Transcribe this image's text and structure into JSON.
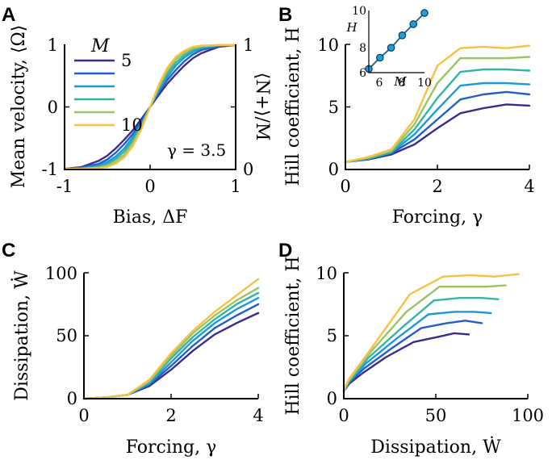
{
  "colors": [
    "#3b2d8c",
    "#2260c8",
    "#1d9ad6",
    "#33b5a4",
    "#9cc462",
    "#f9c043"
  ],
  "chart_data": [
    {
      "panel": "A",
      "type": "line",
      "xlabel": "Bias, ΔF",
      "ylabel": "Mean velocity, ⟨Ω⟩",
      "ylabel_right": "⟨N+⟩/M",
      "xlim": [
        -1,
        1
      ],
      "ylim": [
        -1,
        1
      ],
      "xticks": [
        "-1",
        "0",
        "1"
      ],
      "yticks": [
        "-1",
        "0",
        "1"
      ],
      "yticks_right": [
        "0",
        "1"
      ],
      "legend_title": "M",
      "legend_labels": [
        "5",
        "",
        "",
        "",
        "",
        "10"
      ],
      "annotation": "γ = 3.5",
      "x": [
        -1.0,
        -0.8,
        -0.6,
        -0.5,
        -0.4,
        -0.3,
        -0.2,
        -0.1,
        0.0,
        0.1,
        0.2,
        0.3,
        0.4,
        0.5,
        0.6,
        0.8,
        1.0
      ],
      "series": [
        {
          "name": "M=5",
          "values": [
            -0.99,
            -0.96,
            -0.86,
            -0.78,
            -0.66,
            -0.52,
            -0.37,
            -0.19,
            0.0,
            0.19,
            0.37,
            0.52,
            0.66,
            0.78,
            0.86,
            0.96,
            0.99
          ]
        },
        {
          "name": "M=6",
          "values": [
            -0.99,
            -0.97,
            -0.91,
            -0.84,
            -0.73,
            -0.59,
            -0.43,
            -0.23,
            0.0,
            0.23,
            0.43,
            0.59,
            0.73,
            0.84,
            0.91,
            0.97,
            0.99
          ]
        },
        {
          "name": "M=7",
          "values": [
            -0.99,
            -0.98,
            -0.94,
            -0.88,
            -0.79,
            -0.66,
            -0.48,
            -0.26,
            0.0,
            0.26,
            0.48,
            0.66,
            0.79,
            0.88,
            0.94,
            0.98,
            0.99
          ]
        },
        {
          "name": "M=8",
          "values": [
            -0.99,
            -0.99,
            -0.96,
            -0.91,
            -0.83,
            -0.71,
            -0.53,
            -0.29,
            0.0,
            0.29,
            0.53,
            0.71,
            0.83,
            0.91,
            0.96,
            0.99,
            0.99
          ]
        },
        {
          "name": "M=9",
          "values": [
            -0.99,
            -0.99,
            -0.97,
            -0.94,
            -0.87,
            -0.76,
            -0.58,
            -0.32,
            0.0,
            0.32,
            0.58,
            0.76,
            0.87,
            0.94,
            0.97,
            0.99,
            0.99
          ]
        },
        {
          "name": "M=10",
          "values": [
            -0.99,
            -0.99,
            -0.98,
            -0.96,
            -0.9,
            -0.8,
            -0.62,
            -0.35,
            0.0,
            0.35,
            0.62,
            0.8,
            0.9,
            0.96,
            0.98,
            0.99,
            0.99
          ]
        }
      ]
    },
    {
      "panel": "B",
      "type": "line",
      "xlabel": "Forcing, γ",
      "ylabel": "Hill coefficient, H",
      "xlim": [
        0,
        4
      ],
      "ylim": [
        0,
        10
      ],
      "xticks": [
        "0",
        "2",
        "4"
      ],
      "yticks": [
        "0",
        "5",
        "10"
      ],
      "x": [
        0.0,
        0.5,
        1.0,
        1.5,
        2.0,
        2.5,
        3.0,
        3.5,
        4.0
      ],
      "series": [
        {
          "name": "M=5",
          "values": [
            0.6,
            0.8,
            1.2,
            2.0,
            3.3,
            4.5,
            4.9,
            5.2,
            5.1
          ]
        },
        {
          "name": "M=6",
          "values": [
            0.6,
            0.85,
            1.3,
            2.4,
            4.0,
            5.6,
            6.0,
            6.2,
            6.0
          ]
        },
        {
          "name": "M=7",
          "values": [
            0.6,
            0.85,
            1.35,
            2.8,
            4.8,
            6.7,
            6.9,
            6.9,
            6.8
          ]
        },
        {
          "name": "M=8",
          "values": [
            0.6,
            0.9,
            1.4,
            3.2,
            5.7,
            7.8,
            8.0,
            8.0,
            7.9
          ]
        },
        {
          "name": "M=9",
          "values": [
            0.6,
            0.95,
            1.5,
            3.6,
            6.9,
            8.9,
            8.9,
            8.9,
            9.0
          ]
        },
        {
          "name": "M=10",
          "values": [
            0.6,
            1.0,
            1.6,
            4.0,
            8.3,
            9.7,
            9.8,
            9.7,
            9.9
          ]
        }
      ],
      "inset": {
        "type": "scatter",
        "xlabel": "M",
        "ylabel": "H",
        "xlim": [
          5,
          10
        ],
        "ylim": [
          5,
          10
        ],
        "xticks": [
          "6",
          "8",
          "10"
        ],
        "yticks": [
          "6",
          "8",
          "10"
        ],
        "x": [
          5,
          6,
          7,
          8,
          9,
          10
        ],
        "y": [
          5.3,
          6.2,
          7.0,
          8.0,
          8.9,
          9.8
        ]
      }
    },
    {
      "panel": "C",
      "type": "line",
      "xlabel": "Forcing, γ",
      "ylabel": "Dissipation, Ẇ",
      "xlim": [
        0,
        4
      ],
      "ylim": [
        0,
        100
      ],
      "xticks": [
        "0",
        "2",
        "4"
      ],
      "yticks": [
        "0",
        "50",
        "100"
      ],
      "x": [
        0.0,
        0.5,
        1.0,
        1.5,
        2.0,
        2.5,
        3.0,
        3.5,
        4.0
      ],
      "series": [
        {
          "name": "M=5",
          "values": [
            0,
            1,
            3,
            10,
            23,
            38,
            51,
            60,
            68
          ]
        },
        {
          "name": "M=6",
          "values": [
            0,
            1,
            3,
            11,
            26,
            42,
            56,
            66,
            75
          ]
        },
        {
          "name": "M=7",
          "values": [
            0,
            1,
            3,
            12,
            29,
            46,
            60,
            71,
            80
          ]
        },
        {
          "name": "M=8",
          "values": [
            0,
            1,
            3,
            13,
            32,
            49,
            63,
            75,
            84
          ]
        },
        {
          "name": "M=9",
          "values": [
            0,
            1,
            3,
            14,
            34,
            52,
            66,
            78,
            88
          ]
        },
        {
          "name": "M=10",
          "values": [
            0,
            1,
            3,
            15,
            36,
            54,
            69,
            82,
            95
          ]
        }
      ]
    },
    {
      "panel": "D",
      "type": "line",
      "xlabel": "Dissipation, Ẇ",
      "ylabel": "Hill coefficient, H",
      "xlim": [
        0,
        100
      ],
      "ylim": [
        0,
        10
      ],
      "xticks": [
        "0",
        "50",
        "100"
      ],
      "yticks": [
        "0",
        "5",
        "10"
      ],
      "series": [
        {
          "name": "M=5",
          "x": [
            0.0,
            1.0,
            3.0,
            10.0,
            23.0,
            38.0,
            51.0,
            60.0,
            68.0
          ],
          "values": [
            0.6,
            0.8,
            1.2,
            2.0,
            3.3,
            4.5,
            4.9,
            5.2,
            5.1
          ]
        },
        {
          "name": "M=6",
          "x": [
            0.0,
            1.0,
            3.0,
            11.0,
            26.0,
            42.0,
            56.0,
            66.0,
            75.0
          ],
          "values": [
            0.6,
            0.85,
            1.3,
            2.4,
            4.0,
            5.6,
            6.0,
            6.2,
            6.0
          ]
        },
        {
          "name": "M=7",
          "x": [
            0.0,
            1.0,
            3.0,
            12.0,
            29.0,
            46.0,
            60.0,
            71.0,
            80.0
          ],
          "values": [
            0.6,
            0.85,
            1.35,
            2.8,
            4.8,
            6.7,
            6.9,
            6.9,
            6.8
          ]
        },
        {
          "name": "M=8",
          "x": [
            0.0,
            1.0,
            3.0,
            13.0,
            32.0,
            49.0,
            63.0,
            75.0,
            84.0
          ],
          "values": [
            0.6,
            0.9,
            1.4,
            3.2,
            5.7,
            7.8,
            8.0,
            8.0,
            7.9
          ]
        },
        {
          "name": "M=9",
          "x": [
            0.0,
            1.0,
            3.0,
            14.0,
            34.0,
            52.0,
            66.0,
            78.0,
            88.0
          ],
          "values": [
            0.6,
            0.95,
            1.5,
            3.6,
            6.9,
            8.9,
            8.9,
            8.9,
            9.0
          ]
        },
        {
          "name": "M=10",
          "x": [
            0.0,
            1.0,
            3.0,
            15.0,
            36.0,
            54.0,
            69.0,
            82.0,
            95.0
          ],
          "values": [
            0.6,
            1.0,
            1.6,
            4.0,
            8.3,
            9.7,
            9.8,
            9.7,
            9.9
          ]
        }
      ]
    }
  ]
}
